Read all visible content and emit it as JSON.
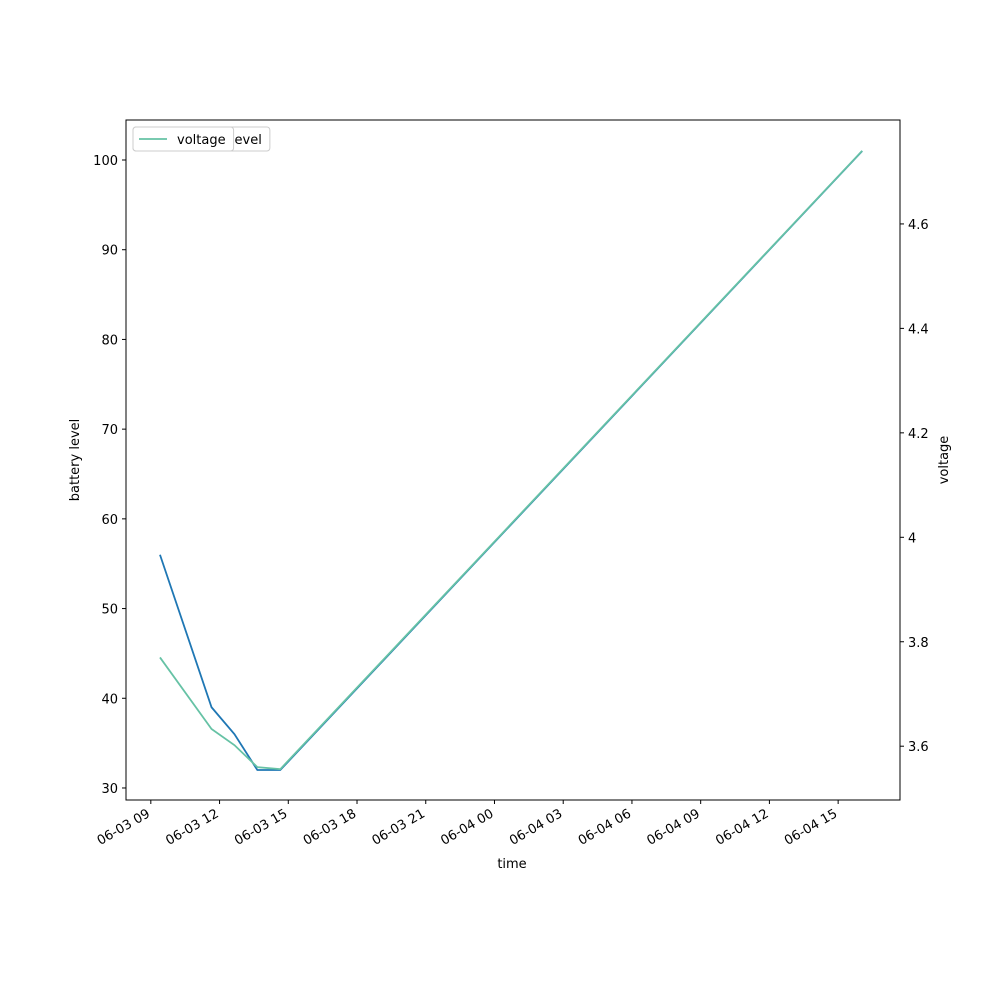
{
  "chart_data": {
    "type": "line",
    "x_label": "time",
    "y_label": "battery level",
    "y2_label": "voltage",
    "x": [
      "06-03 09:24",
      "06-03 11:39",
      "06-03 12:39",
      "06-03 13:39",
      "06-03 14:39",
      "06-04 16:03"
    ],
    "series": [
      {
        "name": "battery_level",
        "color": "#1f77b4",
        "values": [
          56,
          39,
          36,
          32,
          32,
          101
        ]
      },
      {
        "name": "voltage",
        "color": "#66c2a5",
        "axis": "y2",
        "values": [
          3.77,
          3.633,
          3.602,
          3.56,
          3.556,
          4.74
        ]
      }
    ],
    "xlim": [
      "06-03 07:55",
      "06-04 17:42"
    ],
    "xticks": [
      "06-03 09",
      "06-03 12",
      "06-03 15",
      "06-03 18",
      "06-03 21",
      "06-04 00",
      "06-04 03",
      "06-04 06",
      "06-04 09",
      "06-04 12",
      "06-04 15"
    ],
    "ylim": [
      28.66,
      104.46
    ],
    "yticks": [
      30,
      40,
      50,
      60,
      70,
      80,
      90,
      100
    ],
    "y2lim": [
      3.497,
      4.799
    ],
    "y2ticks": [
      3.6,
      3.8,
      4.0,
      4.2,
      4.4,
      4.6
    ],
    "legend_loc": "upper left"
  }
}
